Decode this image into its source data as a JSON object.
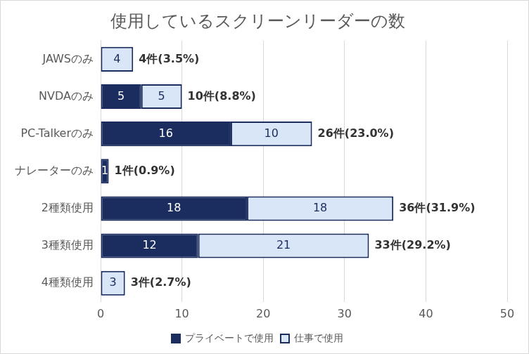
{
  "chart_data": {
    "type": "bar",
    "orientation": "horizontal",
    "stacked": true,
    "title": "使用しているスクリーンリーダーの数",
    "categories": [
      "JAWSのみ",
      "NVDAのみ",
      "PC-Talkerのみ",
      "ナレーターのみ",
      "2種類使用",
      "3種類使用",
      "4種類使用"
    ],
    "series": [
      {
        "name": "プライベートで使用",
        "color": "#1b2c5e",
        "values": [
          0,
          5,
          16,
          1,
          18,
          12,
          0
        ],
        "value_labels": [
          null,
          "5",
          "16",
          "1",
          "18",
          "12",
          null
        ]
      },
      {
        "name": "仕事で使用",
        "color": "#d9e6f7",
        "values": [
          4,
          5,
          10,
          0,
          18,
          21,
          3
        ],
        "value_labels": [
          "4",
          "5",
          "10",
          null,
          "18",
          "21",
          "3"
        ]
      }
    ],
    "annotations": [
      "4件(3.5%)",
      "10件(8.8%)",
      "26件(23.0%)",
      "1件(0.9%)",
      "36件(31.9%)",
      "33件(29.2%)",
      "3件(2.7%)"
    ],
    "xlim": [
      0,
      50
    ],
    "xticks": [
      0,
      10,
      20,
      30,
      40,
      50
    ],
    "grid": true,
    "legend": "bottom",
    "data_labels": true
  }
}
